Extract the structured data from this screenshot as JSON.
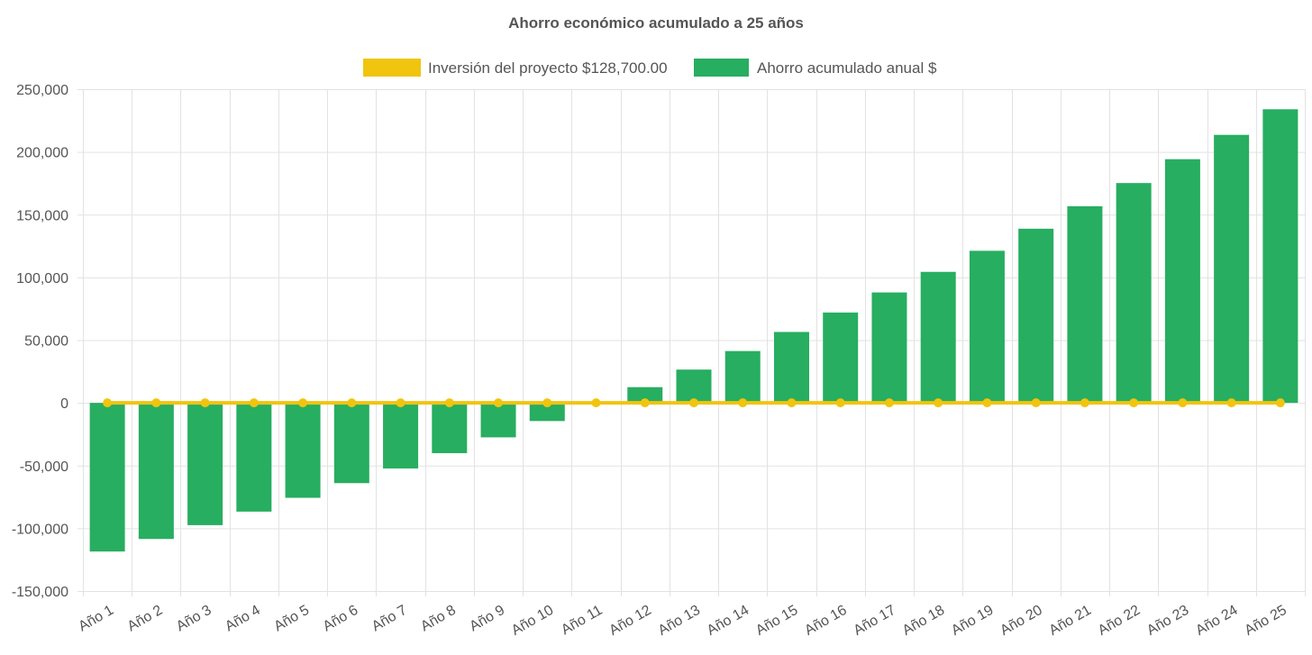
{
  "chart_data": {
    "type": "bar",
    "title": "Ahorro económico acumulado a 25 años",
    "xlabel": "",
    "ylabel": "",
    "ylim": [
      -150000,
      250000
    ],
    "yticks": [
      250000,
      200000,
      150000,
      100000,
      50000,
      0,
      -50000,
      -100000,
      -150000
    ],
    "ytick_labels": [
      "250,000",
      "200,000",
      "150,000",
      "100,000",
      "50,000",
      "0",
      "-50,000",
      "-100,000",
      "-150,000"
    ],
    "grid": true,
    "legend_position": "top-center",
    "categories": [
      "Año 1",
      "Año 2",
      "Año 3",
      "Año 4",
      "Año 5",
      "Año 6",
      "Año 7",
      "Año 8",
      "Año 9",
      "Año 10",
      "Año 11",
      "Año 12",
      "Año 13",
      "Año 14",
      "Año 15",
      "Año 16",
      "Año 17",
      "Año 18",
      "Año 19",
      "Año 20",
      "Año 21",
      "Año 22",
      "Año 23",
      "Año 24",
      "Año 25"
    ],
    "series": [
      {
        "name": "Inversión del proyecto $128,700.00",
        "type": "line",
        "color": "#f1c40f",
        "values": [
          0,
          0,
          0,
          0,
          0,
          0,
          0,
          0,
          0,
          0,
          0,
          0,
          0,
          0,
          0,
          0,
          0,
          0,
          0,
          0,
          0,
          0,
          0,
          0,
          0
        ]
      },
      {
        "name": "Ahorro acumulado anual $",
        "type": "bar",
        "color": "#27ae60",
        "values": [
          -118500,
          -108500,
          -97500,
          -86700,
          -75700,
          -64000,
          -52300,
          -40100,
          -27500,
          -14500,
          0,
          12500,
          26500,
          41300,
          56500,
          72000,
          88000,
          104400,
          121200,
          138800,
          156700,
          175200,
          194200,
          213600,
          234000
        ]
      }
    ]
  }
}
